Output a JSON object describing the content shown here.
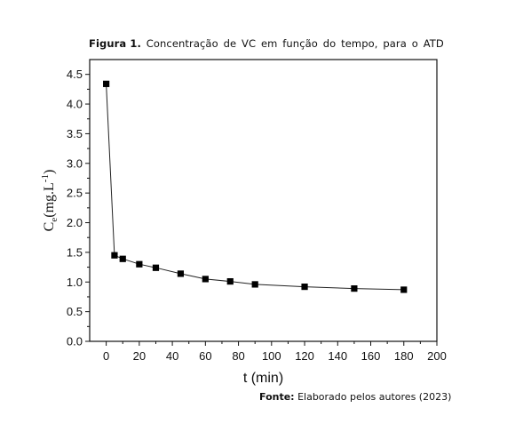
{
  "caption": {
    "label": "Figura 1.",
    "text": [
      "Concentração",
      "de",
      "VC",
      "em",
      "função",
      "do",
      "tempo,",
      "para",
      "o",
      "ATD"
    ]
  },
  "source": {
    "label": "Fonte:",
    "text": "Elaborado pelos autores (2023)"
  },
  "chart_data": {
    "type": "line",
    "xlabel": "t (min)",
    "ylabel": {
      "base": "C",
      "sub": "e",
      "unit": "(mg.L",
      "sup": "-1",
      "close": ")"
    },
    "xlim": [
      -10,
      200
    ],
    "ylim": [
      0,
      4.75
    ],
    "xticks": [
      0,
      20,
      40,
      60,
      80,
      100,
      120,
      140,
      160,
      180,
      200
    ],
    "yticks": [
      "0.0",
      "0.5",
      "1.0",
      "1.5",
      "2.0",
      "2.5",
      "3.0",
      "3.5",
      "4.0",
      "4.5"
    ],
    "grid": false,
    "marker": "square",
    "series": [
      {
        "x": [
          0,
          5,
          10,
          20,
          30,
          45,
          60,
          75,
          90,
          120,
          150,
          180
        ],
        "y": [
          4.34,
          1.45,
          1.39,
          1.3,
          1.24,
          1.14,
          1.05,
          1.01,
          0.96,
          0.92,
          0.89,
          0.87
        ]
      }
    ]
  }
}
